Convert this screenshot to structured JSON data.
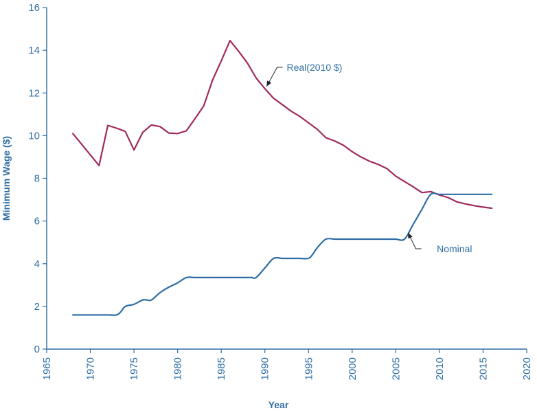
{
  "chart_data": {
    "type": "line",
    "xlabel": "Year",
    "ylabel": "Minimum Wage ($)",
    "xlim": [
      1965,
      2020
    ],
    "ylim": [
      0,
      16
    ],
    "x_ticks": [
      1965,
      1970,
      1975,
      1980,
      1985,
      1990,
      1995,
      2000,
      2005,
      2010,
      2015,
      2020
    ],
    "y_ticks": [
      0,
      2,
      4,
      6,
      8,
      10,
      12,
      14,
      16
    ],
    "grid": false,
    "series": [
      {
        "name": "Real(2010 $)",
        "color": "#a0295d",
        "x": [
          1968,
          1969,
          1970,
          1971,
          1972,
          1973,
          1974,
          1975,
          1976,
          1977,
          1978,
          1979,
          1980,
          1981,
          1982,
          1983,
          1984,
          1985,
          1986,
          1987,
          1988,
          1989,
          1990,
          1991,
          1992,
          1993,
          1994,
          1995,
          1996,
          1997,
          1998,
          1999,
          2000,
          2001,
          2002,
          2003,
          2004,
          2005,
          2006,
          2007,
          2008,
          2009,
          2010,
          2011,
          2012,
          2013,
          2014,
          2015,
          2016
        ],
        "values": [
          10.1,
          9.6,
          9.1,
          8.6,
          10.48,
          10.35,
          10.2,
          9.33,
          10.15,
          10.5,
          10.42,
          10.12,
          10.1,
          10.22,
          10.8,
          11.4,
          12.6,
          13.5,
          14.45,
          13.95,
          13.4,
          12.7,
          12.2,
          11.75,
          11.45,
          11.15,
          10.9,
          10.6,
          10.3,
          9.9,
          9.75,
          9.55,
          9.25,
          9.0,
          8.8,
          8.65,
          8.45,
          8.1,
          7.85,
          7.6,
          7.33,
          7.38,
          7.22,
          7.1,
          6.9,
          6.8,
          6.72,
          6.65,
          6.6
        ]
      },
      {
        "name": "Nominal",
        "color": "#2e6da4",
        "x": [
          1968,
          1969,
          1970,
          1971,
          1972,
          1973,
          1973.5,
          1974,
          1975,
          1976,
          1976.5,
          1977,
          1978,
          1979,
          1980,
          1981,
          1982,
          1983,
          1984,
          1985,
          1986,
          1987,
          1988,
          1988.5,
          1989,
          1990,
          1991,
          1992,
          1993,
          1994,
          1995,
          1995.5,
          1996,
          1997,
          1998,
          1999,
          2000,
          2001,
          2002,
          2003,
          2004,
          2005,
          2006,
          2007,
          2008,
          2009,
          2010,
          2011,
          2012,
          2013,
          2014,
          2015,
          2016
        ],
        "values": [
          1.6,
          1.6,
          1.6,
          1.6,
          1.6,
          1.6,
          1.75,
          2.0,
          2.1,
          2.3,
          2.3,
          2.3,
          2.65,
          2.9,
          3.1,
          3.35,
          3.35,
          3.35,
          3.35,
          3.35,
          3.35,
          3.35,
          3.35,
          3.35,
          3.35,
          3.8,
          4.25,
          4.25,
          4.25,
          4.25,
          4.25,
          4.45,
          4.75,
          5.15,
          5.15,
          5.15,
          5.15,
          5.15,
          5.15,
          5.15,
          5.15,
          5.15,
          5.15,
          5.85,
          6.55,
          7.25,
          7.25,
          7.25,
          7.25,
          7.25,
          7.25,
          7.25,
          7.25
        ]
      }
    ],
    "annotations": [
      {
        "text": "Real(2010 $)",
        "series": "Real(2010 $)",
        "x": 1992.5,
        "y": 13.2,
        "points_to": [
          1990.2,
          12.3
        ],
        "via": [
          1991.4,
          13.2
        ]
      },
      {
        "text": "Nominal",
        "series": "Nominal",
        "x": 2009.7,
        "y": 4.7,
        "points_to": [
          2006.4,
          5.45
        ],
        "via": [
          2007.3,
          4.7
        ]
      }
    ]
  }
}
